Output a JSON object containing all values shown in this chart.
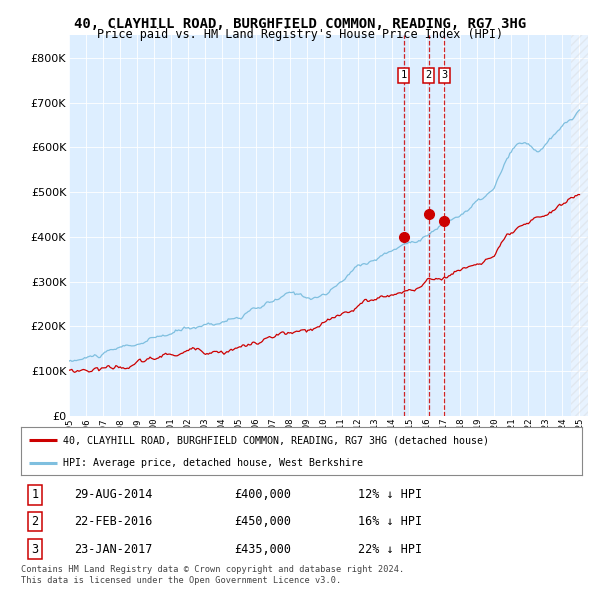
{
  "title": "40, CLAYHILL ROAD, BURGHFIELD COMMON, READING, RG7 3HG",
  "subtitle": "Price paid vs. HM Land Registry's House Price Index (HPI)",
  "legend_line1": "40, CLAYHILL ROAD, BURGHFIELD COMMON, READING, RG7 3HG (detached house)",
  "legend_line2": "HPI: Average price, detached house, West Berkshire",
  "transactions": [
    {
      "num": 1,
      "date": "29-AUG-2014",
      "price": 400000,
      "pct": "12%",
      "dir": "↓"
    },
    {
      "num": 2,
      "date": "22-FEB-2016",
      "price": 450000,
      "pct": "16%",
      "dir": "↓"
    },
    {
      "num": 3,
      "date": "23-JAN-2017",
      "price": 435000,
      "pct": "22%",
      "dir": "↓"
    }
  ],
  "footnote1": "Contains HM Land Registry data © Crown copyright and database right 2024.",
  "footnote2": "This data is licensed under the Open Government Licence v3.0.",
  "hpi_color": "#7fbfdf",
  "price_color": "#cc0000",
  "plot_bg": "#ddeeff",
  "ylim": [
    0,
    850000
  ],
  "yticks": [
    0,
    100000,
    200000,
    300000,
    400000,
    500000,
    600000,
    700000,
    800000
  ],
  "t1": 2014.66,
  "t2": 2016.13,
  "t3": 2017.06
}
